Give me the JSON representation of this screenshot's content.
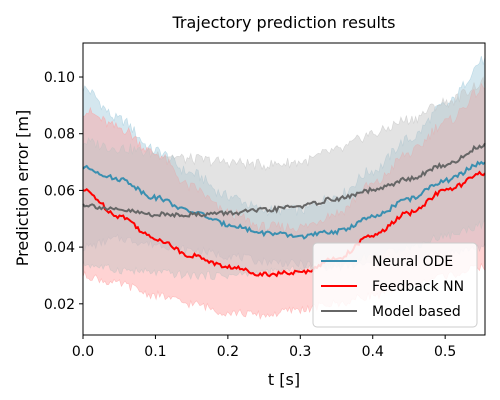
{
  "chart_data": {
    "type": "line",
    "title": "Trajectory prediction results",
    "xlabel": "t [s]",
    "ylabel": "Prediction error [m]",
    "xlim": [
      0.0,
      0.555
    ],
    "ylim": [
      0.009,
      0.112
    ],
    "xticks": [
      "0.0",
      "0.1",
      "0.2",
      "0.3",
      "0.4",
      "0.5"
    ],
    "yticks": [
      "0.02",
      "0.04",
      "0.06",
      "0.08",
      "0.10"
    ],
    "grid": false,
    "legend_position": "lower-right",
    "x": [
      0.0,
      0.05,
      0.1,
      0.15,
      0.2,
      0.25,
      0.3,
      0.35,
      0.4,
      0.45,
      0.5,
      0.555
    ],
    "series": [
      {
        "name": "Neural ODE",
        "color": "#3a8fb0",
        "band_color": "#9fc9dc",
        "mean": [
          0.068,
          0.064,
          0.0575,
          0.0525,
          0.048,
          0.045,
          0.0438,
          0.0455,
          0.0505,
          0.057,
          0.0635,
          0.07
        ],
        "upper": [
          0.096,
          0.085,
          0.074,
          0.066,
          0.058,
          0.053,
          0.053,
          0.058,
          0.067,
          0.078,
          0.09,
          0.106
        ],
        "lower": [
          0.04,
          0.043,
          0.041,
          0.039,
          0.037,
          0.035,
          0.034,
          0.033,
          0.034,
          0.036,
          0.038,
          0.04
        ]
      },
      {
        "name": "Feedback NN",
        "color": "#ff0000",
        "band_color": "#ff9e9e",
        "mean": [
          0.06,
          0.051,
          0.043,
          0.037,
          0.033,
          0.0305,
          0.031,
          0.036,
          0.044,
          0.052,
          0.06,
          0.066
        ],
        "upper": [
          0.088,
          0.082,
          0.073,
          0.061,
          0.052,
          0.047,
          0.047,
          0.052,
          0.062,
          0.073,
          0.084,
          0.096
        ],
        "lower": [
          0.03,
          0.027,
          0.023,
          0.02,
          0.017,
          0.016,
          0.018,
          0.02,
          0.023,
          0.026,
          0.03,
          0.033
        ]
      },
      {
        "name": "Model based",
        "color": "#666666",
        "band_color": "#c2c2c2",
        "mean": [
          0.055,
          0.053,
          0.0515,
          0.0515,
          0.052,
          0.053,
          0.0545,
          0.057,
          0.06,
          0.064,
          0.069,
          0.076
        ],
        "upper": [
          0.077,
          0.075,
          0.073,
          0.071,
          0.07,
          0.069,
          0.07,
          0.074,
          0.08,
          0.085,
          0.091,
          0.098
        ],
        "lower": [
          0.034,
          0.032,
          0.031,
          0.03,
          0.03,
          0.031,
          0.032,
          0.034,
          0.037,
          0.04,
          0.044,
          0.048
        ]
      }
    ]
  }
}
